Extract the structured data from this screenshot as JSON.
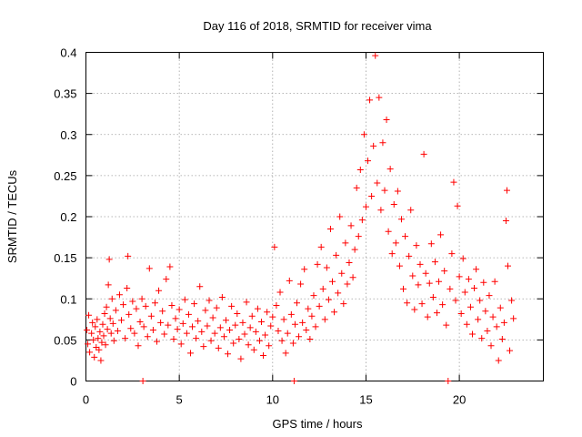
{
  "chart_data": {
    "type": "scatter",
    "title": "Day 116 of 2018, SRMTID for receiver vima",
    "xlabel": "GPS time / hours",
    "ylabel": "SRMTID / TECUs",
    "xlim": [
      0,
      24.5
    ],
    "ylim": [
      0,
      0.4
    ],
    "xticks": [
      0,
      5,
      10,
      15,
      20
    ],
    "xtick_labels": [
      "0",
      "5",
      "10",
      "15",
      "20"
    ],
    "yticks": [
      0,
      0.05,
      0.1,
      0.15,
      0.2,
      0.25,
      0.3,
      0.35,
      0.4
    ],
    "ytick_labels": [
      "0",
      "0.05",
      "0.1",
      "0.15",
      "0.2",
      "0.25",
      "0.3",
      "0.35",
      "0.4"
    ],
    "grid": true,
    "marker": "+",
    "color": "#ff0000",
    "series": [
      {
        "name": "SRMTID",
        "points": [
          [
            0.05,
            0.062
          ],
          [
            0.1,
            0.045
          ],
          [
            0.15,
            0.08
          ],
          [
            0.2,
            0.035
          ],
          [
            0.3,
            0.058
          ],
          [
            0.35,
            0.071
          ],
          [
            0.4,
            0.05
          ],
          [
            0.45,
            0.029
          ],
          [
            0.5,
            0.066
          ],
          [
            0.55,
            0.041
          ],
          [
            0.6,
            0.075
          ],
          [
            0.65,
            0.052
          ],
          [
            0.7,
            0.038
          ],
          [
            0.75,
            0.06
          ],
          [
            0.8,
            0.025
          ],
          [
            0.85,
            0.047
          ],
          [
            0.9,
            0.069
          ],
          [
            0.95,
            0.055
          ],
          [
            1.0,
            0.082
          ],
          [
            1.05,
            0.044
          ],
          [
            1.1,
            0.09
          ],
          [
            1.15,
            0.063
          ],
          [
            1.2,
            0.117
          ],
          [
            1.25,
            0.148
          ],
          [
            1.3,
            0.076
          ],
          [
            1.35,
            0.058
          ],
          [
            1.4,
            0.1
          ],
          [
            1.45,
            0.07
          ],
          [
            1.5,
            0.049
          ],
          [
            1.6,
            0.086
          ],
          [
            1.7,
            0.061
          ],
          [
            1.8,
            0.105
          ],
          [
            1.9,
            0.074
          ],
          [
            2.0,
            0.093
          ],
          [
            2.1,
            0.052
          ],
          [
            2.2,
            0.113
          ],
          [
            2.25,
            0.152
          ],
          [
            2.3,
            0.081
          ],
          [
            2.4,
            0.064
          ],
          [
            2.5,
            0.097
          ],
          [
            2.6,
            0.058
          ],
          [
            2.7,
            0.088
          ],
          [
            2.8,
            0.043
          ],
          [
            2.9,
            0.072
          ],
          [
            3.0,
            0.1
          ],
          [
            3.05,
            0.0
          ],
          [
            3.1,
            0.066
          ],
          [
            3.2,
            0.091
          ],
          [
            3.3,
            0.054
          ],
          [
            3.4,
            0.137
          ],
          [
            3.5,
            0.079
          ],
          [
            3.6,
            0.062
          ],
          [
            3.7,
            0.095
          ],
          [
            3.8,
            0.048
          ],
          [
            3.9,
            0.11
          ],
          [
            4.0,
            0.071
          ],
          [
            4.1,
            0.085
          ],
          [
            4.2,
            0.057
          ],
          [
            4.3,
            0.124
          ],
          [
            4.4,
            0.068
          ],
          [
            4.5,
            0.139
          ],
          [
            4.6,
            0.092
          ],
          [
            4.7,
            0.051
          ],
          [
            4.8,
            0.076
          ],
          [
            4.9,
            0.063
          ],
          [
            5.0,
            0.087
          ],
          [
            5.1,
            0.045
          ],
          [
            5.2,
            0.07
          ],
          [
            5.3,
            0.099
          ],
          [
            5.4,
            0.058
          ],
          [
            5.5,
            0.081
          ],
          [
            5.6,
            0.034
          ],
          [
            5.7,
            0.066
          ],
          [
            5.8,
            0.094
          ],
          [
            5.9,
            0.052
          ],
          [
            6.0,
            0.073
          ],
          [
            6.1,
            0.115
          ],
          [
            6.2,
            0.06
          ],
          [
            6.3,
            0.042
          ],
          [
            6.4,
            0.086
          ],
          [
            6.5,
            0.067
          ],
          [
            6.6,
            0.098
          ],
          [
            6.7,
            0.049
          ],
          [
            6.8,
            0.077
          ],
          [
            6.9,
            0.058
          ],
          [
            7.0,
            0.089
          ],
          [
            7.1,
            0.04
          ],
          [
            7.2,
            0.065
          ],
          [
            7.3,
            0.102
          ],
          [
            7.4,
            0.054
          ],
          [
            7.5,
            0.074
          ],
          [
            7.6,
            0.033
          ],
          [
            7.7,
            0.062
          ],
          [
            7.8,
            0.091
          ],
          [
            7.9,
            0.046
          ],
          [
            8.0,
            0.068
          ],
          [
            8.1,
            0.082
          ],
          [
            8.2,
            0.051
          ],
          [
            8.3,
            0.027
          ],
          [
            8.4,
            0.071
          ],
          [
            8.5,
            0.057
          ],
          [
            8.6,
            0.096
          ],
          [
            8.7,
            0.044
          ],
          [
            8.8,
            0.065
          ],
          [
            8.9,
            0.079
          ],
          [
            9.0,
            0.038
          ],
          [
            9.1,
            0.06
          ],
          [
            9.2,
            0.088
          ],
          [
            9.3,
            0.049
          ],
          [
            9.4,
            0.072
          ],
          [
            9.5,
            0.031
          ],
          [
            9.6,
            0.056
          ],
          [
            9.7,
            0.084
          ],
          [
            9.8,
            0.043
          ],
          [
            9.9,
            0.067
          ],
          [
            10.0,
            0.078
          ],
          [
            10.1,
            0.163
          ],
          [
            10.2,
            0.092
          ],
          [
            10.3,
            0.061
          ],
          [
            10.4,
            0.108
          ],
          [
            10.5,
            0.049
          ],
          [
            10.6,
            0.075
          ],
          [
            10.7,
            0.034
          ],
          [
            10.8,
            0.058
          ],
          [
            10.9,
            0.122
          ],
          [
            11.0,
            0.081
          ],
          [
            11.1,
            0.046
          ],
          [
            11.15,
            0.0
          ],
          [
            11.2,
            0.069
          ],
          [
            11.3,
            0.095
          ],
          [
            11.4,
            0.054
          ],
          [
            11.5,
            0.118
          ],
          [
            11.6,
            0.071
          ],
          [
            11.7,
            0.136
          ],
          [
            11.8,
            0.062
          ],
          [
            11.9,
            0.088
          ],
          [
            12.0,
            0.051
          ],
          [
            12.1,
            0.079
          ],
          [
            12.2,
            0.104
          ],
          [
            12.3,
            0.066
          ],
          [
            12.4,
            0.142
          ],
          [
            12.5,
            0.091
          ],
          [
            12.6,
            0.163
          ],
          [
            12.7,
            0.112
          ],
          [
            12.8,
            0.075
          ],
          [
            12.9,
            0.138
          ],
          [
            13.0,
            0.099
          ],
          [
            13.1,
            0.185
          ],
          [
            13.2,
            0.121
          ],
          [
            13.3,
            0.084
          ],
          [
            13.4,
            0.153
          ],
          [
            13.5,
            0.107
          ],
          [
            13.6,
            0.2
          ],
          [
            13.7,
            0.131
          ],
          [
            13.8,
            0.094
          ],
          [
            13.9,
            0.168
          ],
          [
            14.0,
            0.118
          ],
          [
            14.1,
            0.144
          ],
          [
            14.2,
            0.189
          ],
          [
            14.3,
            0.126
          ],
          [
            14.4,
            0.16
          ],
          [
            14.5,
            0.235
          ],
          [
            14.6,
            0.176
          ],
          [
            14.7,
            0.257
          ],
          [
            14.8,
            0.196
          ],
          [
            14.9,
            0.3
          ],
          [
            15.0,
            0.212
          ],
          [
            15.1,
            0.268
          ],
          [
            15.2,
            0.342
          ],
          [
            15.3,
            0.225
          ],
          [
            15.4,
            0.286
          ],
          [
            15.5,
            0.396
          ],
          [
            15.6,
            0.241
          ],
          [
            15.7,
            0.345
          ],
          [
            15.8,
            0.208
          ],
          [
            15.9,
            0.29
          ],
          [
            16.0,
            0.232
          ],
          [
            16.1,
            0.318
          ],
          [
            16.2,
            0.182
          ],
          [
            16.3,
            0.258
          ],
          [
            16.4,
            0.155
          ],
          [
            16.5,
            0.215
          ],
          [
            16.6,
            0.168
          ],
          [
            16.7,
            0.231
          ],
          [
            16.8,
            0.14
          ],
          [
            16.9,
            0.197
          ],
          [
            17.0,
            0.112
          ],
          [
            17.1,
            0.176
          ],
          [
            17.2,
            0.095
          ],
          [
            17.3,
            0.152
          ],
          [
            17.4,
            0.208
          ],
          [
            17.5,
            0.128
          ],
          [
            17.6,
            0.087
          ],
          [
            17.7,
            0.165
          ],
          [
            17.8,
            0.117
          ],
          [
            17.9,
            0.142
          ],
          [
            18.0,
            0.094
          ],
          [
            18.1,
            0.276
          ],
          [
            18.2,
            0.131
          ],
          [
            18.3,
            0.078
          ],
          [
            18.4,
            0.119
          ],
          [
            18.5,
            0.167
          ],
          [
            18.6,
            0.102
          ],
          [
            18.7,
            0.145
          ],
          [
            18.8,
            0.083
          ],
          [
            18.9,
            0.121
          ],
          [
            19.0,
            0.178
          ],
          [
            19.1,
            0.093
          ],
          [
            19.2,
            0.134
          ],
          [
            19.3,
            0.068
          ],
          [
            19.4,
            0.0
          ],
          [
            19.5,
            0.112
          ],
          [
            19.6,
            0.155
          ],
          [
            19.7,
            0.242
          ],
          [
            19.8,
            0.098
          ],
          [
            19.9,
            0.213
          ],
          [
            20.0,
            0.127
          ],
          [
            20.1,
            0.082
          ],
          [
            20.2,
            0.149
          ],
          [
            20.3,
            0.108
          ],
          [
            20.4,
            0.069
          ],
          [
            20.5,
            0.124
          ],
          [
            20.6,
            0.09
          ],
          [
            20.7,
            0.057
          ],
          [
            20.8,
            0.113
          ],
          [
            20.9,
            0.136
          ],
          [
            21.0,
            0.075
          ],
          [
            21.1,
            0.098
          ],
          [
            21.2,
            0.052
          ],
          [
            21.3,
            0.12
          ],
          [
            21.4,
            0.085
          ],
          [
            21.5,
            0.061
          ],
          [
            21.6,
            0.104
          ],
          [
            21.7,
            0.043
          ],
          [
            21.8,
            0.078
          ],
          [
            21.9,
            0.121
          ],
          [
            22.0,
            0.066
          ],
          [
            22.1,
            0.025
          ],
          [
            22.2,
            0.089
          ],
          [
            22.3,
            0.051
          ],
          [
            22.4,
            0.071
          ],
          [
            22.5,
            0.195
          ],
          [
            22.55,
            0.232
          ],
          [
            22.6,
            0.14
          ],
          [
            22.7,
            0.037
          ],
          [
            22.8,
            0.098
          ],
          [
            22.9,
            0.076
          ]
        ]
      }
    ]
  }
}
